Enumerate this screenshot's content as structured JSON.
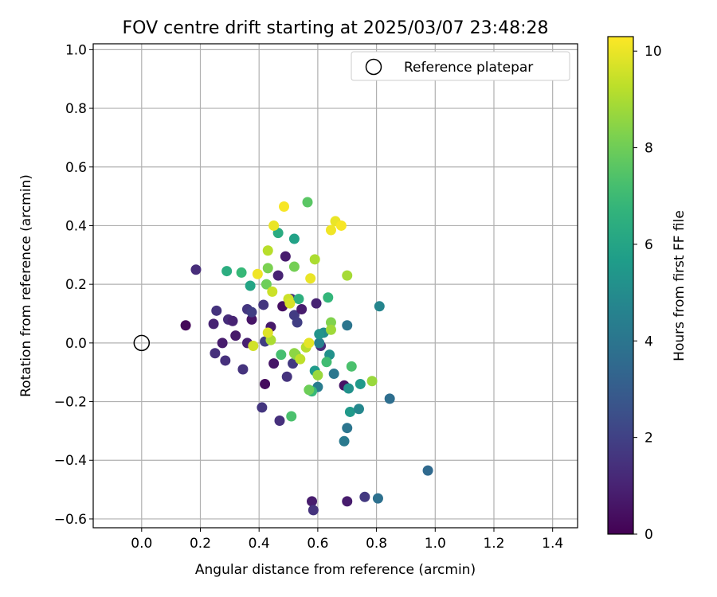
{
  "chart_data": {
    "type": "scatter",
    "title": "FOV centre drift starting at 2025/03/07 23:48:28",
    "xlabel": "Angular distance from reference (arcmin)",
    "ylabel": "Rotation from reference (arcmin)",
    "xlim": [
      -0.165,
      1.485
    ],
    "ylim": [
      -0.63,
      1.02
    ],
    "xticks": [
      0.0,
      0.2,
      0.4,
      0.6,
      0.8,
      1.0,
      1.2,
      1.4
    ],
    "xtick_labels": [
      "0.0",
      "0.2",
      "0.4",
      "0.6",
      "0.8",
      "1.0",
      "1.2",
      "1.4"
    ],
    "yticks": [
      -0.6,
      -0.4,
      -0.2,
      0.0,
      0.2,
      0.4,
      0.6,
      0.8,
      1.0
    ],
    "ytick_labels": [
      "−0.6",
      "−0.4",
      "−0.2",
      "0.0",
      "0.2",
      "0.4",
      "0.6",
      "0.8",
      "1.0"
    ],
    "grid": true,
    "legend": {
      "position": "top-right",
      "entries": [
        "Reference platepar"
      ]
    },
    "reference_point": {
      "x": 0.0,
      "y": 0.0
    },
    "colorbar": {
      "label": "Hours from first FF file",
      "range": [
        0,
        10.3
      ],
      "ticks": [
        0,
        2,
        4,
        6,
        8,
        10
      ],
      "tick_labels": [
        "0",
        "2",
        "4",
        "6",
        "8",
        "10"
      ],
      "colormap": "viridis"
    },
    "points": [
      {
        "x": 0.15,
        "y": 0.06,
        "h": 0.2
      },
      {
        "x": 0.185,
        "y": 0.25,
        "h": 1.3
      },
      {
        "x": 0.245,
        "y": 0.065,
        "h": 1.0
      },
      {
        "x": 0.255,
        "y": 0.11,
        "h": 1.5
      },
      {
        "x": 0.25,
        "y": -0.035,
        "h": 1.4
      },
      {
        "x": 0.275,
        "y": 0.0,
        "h": 0.8
      },
      {
        "x": 0.285,
        "y": -0.06,
        "h": 1.4
      },
      {
        "x": 0.295,
        "y": 0.08,
        "h": 1.3
      },
      {
        "x": 0.31,
        "y": 0.075,
        "h": 1.0
      },
      {
        "x": 0.32,
        "y": 0.025,
        "h": 0.7
      },
      {
        "x": 0.345,
        "y": -0.09,
        "h": 1.5
      },
      {
        "x": 0.36,
        "y": 0.0,
        "h": 0.9
      },
      {
        "x": 0.36,
        "y": 0.115,
        "h": 1.6
      },
      {
        "x": 0.375,
        "y": 0.08,
        "h": 0.6
      },
      {
        "x": 0.375,
        "y": 0.105,
        "h": 1.9
      },
      {
        "x": 0.41,
        "y": -0.22,
        "h": 1.6
      },
      {
        "x": 0.415,
        "y": 0.13,
        "h": 1.6
      },
      {
        "x": 0.42,
        "y": 0.005,
        "h": 1.9
      },
      {
        "x": 0.42,
        "y": -0.14,
        "h": 0.3
      },
      {
        "x": 0.44,
        "y": 0.055,
        "h": 0.7
      },
      {
        "x": 0.45,
        "y": -0.07,
        "h": 0.6
      },
      {
        "x": 0.465,
        "y": 0.23,
        "h": 1.0
      },
      {
        "x": 0.47,
        "y": -0.265,
        "h": 1.4
      },
      {
        "x": 0.48,
        "y": 0.125,
        "h": 0.4
      },
      {
        "x": 0.49,
        "y": 0.295,
        "h": 0.8
      },
      {
        "x": 0.495,
        "y": -0.115,
        "h": 1.5
      },
      {
        "x": 0.51,
        "y": 0.15,
        "h": 1.6
      },
      {
        "x": 0.515,
        "y": -0.07,
        "h": 1.7
      },
      {
        "x": 0.52,
        "y": 0.095,
        "h": 1.8
      },
      {
        "x": 0.53,
        "y": 0.07,
        "h": 1.9
      },
      {
        "x": 0.545,
        "y": 0.115,
        "h": 0.8
      },
      {
        "x": 0.58,
        "y": -0.54,
        "h": 0.8
      },
      {
        "x": 0.585,
        "y": -0.57,
        "h": 1.5
      },
      {
        "x": 0.595,
        "y": 0.135,
        "h": 1.0
      },
      {
        "x": 0.61,
        "y": -0.01,
        "h": 1.2
      },
      {
        "x": 0.69,
        "y": -0.145,
        "h": 0.5
      },
      {
        "x": 0.7,
        "y": -0.54,
        "h": 0.8
      },
      {
        "x": 0.76,
        "y": -0.525,
        "h": 1.7
      },
      {
        "x": 0.805,
        "y": -0.53,
        "h": 3.8
      },
      {
        "x": 0.975,
        "y": -0.435,
        "h": 3.5
      },
      {
        "x": 0.845,
        "y": -0.19,
        "h": 3.7
      },
      {
        "x": 0.7,
        "y": 0.06,
        "h": 4.0
      },
      {
        "x": 0.655,
        "y": -0.105,
        "h": 4.1
      },
      {
        "x": 0.7,
        "y": -0.29,
        "h": 4.0
      },
      {
        "x": 0.69,
        "y": -0.335,
        "h": 4.2
      },
      {
        "x": 0.6,
        "y": -0.15,
        "h": 4.3
      },
      {
        "x": 0.605,
        "y": 0.0,
        "h": 4.5
      },
      {
        "x": 0.62,
        "y": 0.035,
        "h": 5.0
      },
      {
        "x": 0.605,
        "y": 0.03,
        "h": 5.3
      },
      {
        "x": 0.64,
        "y": -0.04,
        "h": 5.2
      },
      {
        "x": 0.71,
        "y": -0.235,
        "h": 5.5
      },
      {
        "x": 0.705,
        "y": -0.155,
        "h": 5.2
      },
      {
        "x": 0.74,
        "y": -0.225,
        "h": 4.8
      },
      {
        "x": 0.81,
        "y": 0.125,
        "h": 4.7
      },
      {
        "x": 0.745,
        "y": -0.14,
        "h": 5.5
      },
      {
        "x": 0.59,
        "y": -0.095,
        "h": 5.6
      },
      {
        "x": 0.52,
        "y": 0.355,
        "h": 5.9
      },
      {
        "x": 0.465,
        "y": 0.375,
        "h": 6.3
      },
      {
        "x": 0.37,
        "y": 0.195,
        "h": 6.0
      },
      {
        "x": 0.29,
        "y": 0.245,
        "h": 6.4
      },
      {
        "x": 0.535,
        "y": 0.15,
        "h": 6.5
      },
      {
        "x": 0.635,
        "y": 0.155,
        "h": 6.8
      },
      {
        "x": 0.34,
        "y": 0.24,
        "h": 6.9
      },
      {
        "x": 0.475,
        "y": -0.04,
        "h": 7.2
      },
      {
        "x": 0.51,
        "y": -0.25,
        "h": 7.3
      },
      {
        "x": 0.58,
        "y": -0.165,
        "h": 6.9
      },
      {
        "x": 0.63,
        "y": -0.065,
        "h": 7.1
      },
      {
        "x": 0.715,
        "y": -0.08,
        "h": 7.3
      },
      {
        "x": 0.565,
        "y": 0.48,
        "h": 7.6
      },
      {
        "x": 0.43,
        "y": 0.255,
        "h": 8.2
      },
      {
        "x": 0.425,
        "y": 0.2,
        "h": 8.0
      },
      {
        "x": 0.52,
        "y": 0.26,
        "h": 8.1
      },
      {
        "x": 0.645,
        "y": 0.07,
        "h": 8.3
      },
      {
        "x": 0.525,
        "y": -0.04,
        "h": 8.2
      },
      {
        "x": 0.52,
        "y": -0.035,
        "h": 8.5
      },
      {
        "x": 0.57,
        "y": -0.16,
        "h": 8.0
      },
      {
        "x": 0.6,
        "y": -0.11,
        "h": 8.7
      },
      {
        "x": 0.645,
        "y": 0.045,
        "h": 8.8
      },
      {
        "x": 0.785,
        "y": -0.13,
        "h": 8.7
      },
      {
        "x": 0.7,
        "y": 0.23,
        "h": 8.9
      },
      {
        "x": 0.59,
        "y": 0.285,
        "h": 9.0
      },
      {
        "x": 0.44,
        "y": 0.01,
        "h": 9.0
      },
      {
        "x": 0.56,
        "y": -0.015,
        "h": 9.2
      },
      {
        "x": 0.54,
        "y": -0.055,
        "h": 9.3
      },
      {
        "x": 0.43,
        "y": 0.315,
        "h": 9.2
      },
      {
        "x": 0.445,
        "y": 0.175,
        "h": 9.5
      },
      {
        "x": 0.5,
        "y": 0.15,
        "h": 9.5
      },
      {
        "x": 0.505,
        "y": 0.135,
        "h": 9.7
      },
      {
        "x": 0.38,
        "y": -0.01,
        "h": 9.6
      },
      {
        "x": 0.43,
        "y": 0.035,
        "h": 9.8
      },
      {
        "x": 0.57,
        "y": 0.0,
        "h": 9.9
      },
      {
        "x": 0.575,
        "y": 0.22,
        "h": 10.0
      },
      {
        "x": 0.395,
        "y": 0.235,
        "h": 10.1
      },
      {
        "x": 0.45,
        "y": 0.4,
        "h": 10.0
      },
      {
        "x": 0.485,
        "y": 0.465,
        "h": 10.2
      },
      {
        "x": 0.645,
        "y": 0.385,
        "h": 10.1
      },
      {
        "x": 0.66,
        "y": 0.415,
        "h": 10.0
      },
      {
        "x": 0.68,
        "y": 0.4,
        "h": 10.2
      }
    ]
  }
}
